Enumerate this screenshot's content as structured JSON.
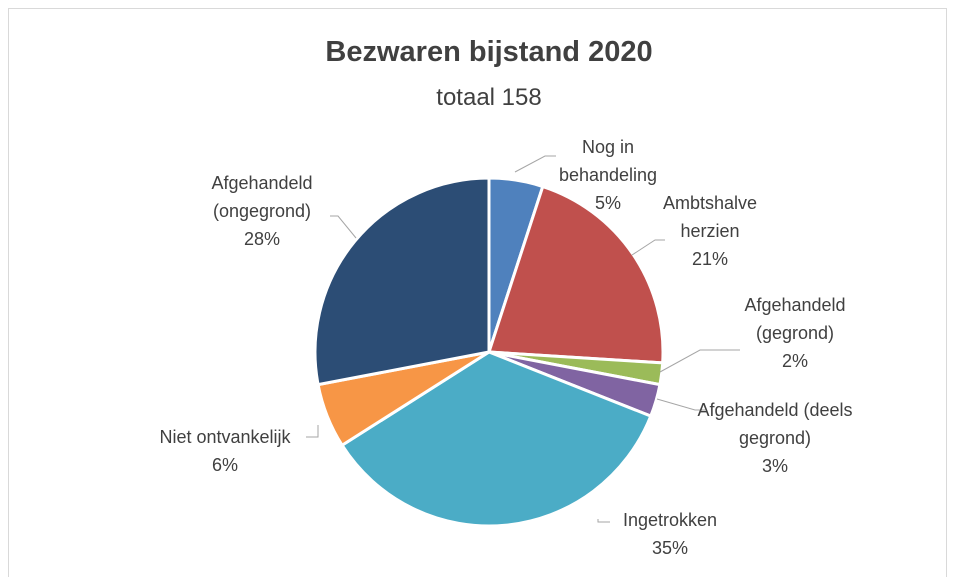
{
  "chart_data": {
    "type": "pie",
    "title": "Bezwaren bijstand 2020",
    "subtitle": "totaal 158",
    "categories": [
      "Nog in behandeling",
      "Ambtshalve herzien",
      "Afgehandeld (gegrond)",
      "Afgehandeld (deels gegrond)",
      "Ingetrokken",
      "Niet ontvankelijk",
      "Afgehandeld (ongegrond)"
    ],
    "values": [
      5,
      21,
      2,
      3,
      35,
      6,
      28
    ],
    "value_labels": [
      "5%",
      "21%",
      "2%",
      "3%",
      "35%",
      "6%",
      "28%"
    ],
    "colors": [
      "#4f81bd",
      "#c0504d",
      "#9bbb59",
      "#8064a2",
      "#4bacc6",
      "#f79646",
      "#2c4d75"
    ]
  }
}
